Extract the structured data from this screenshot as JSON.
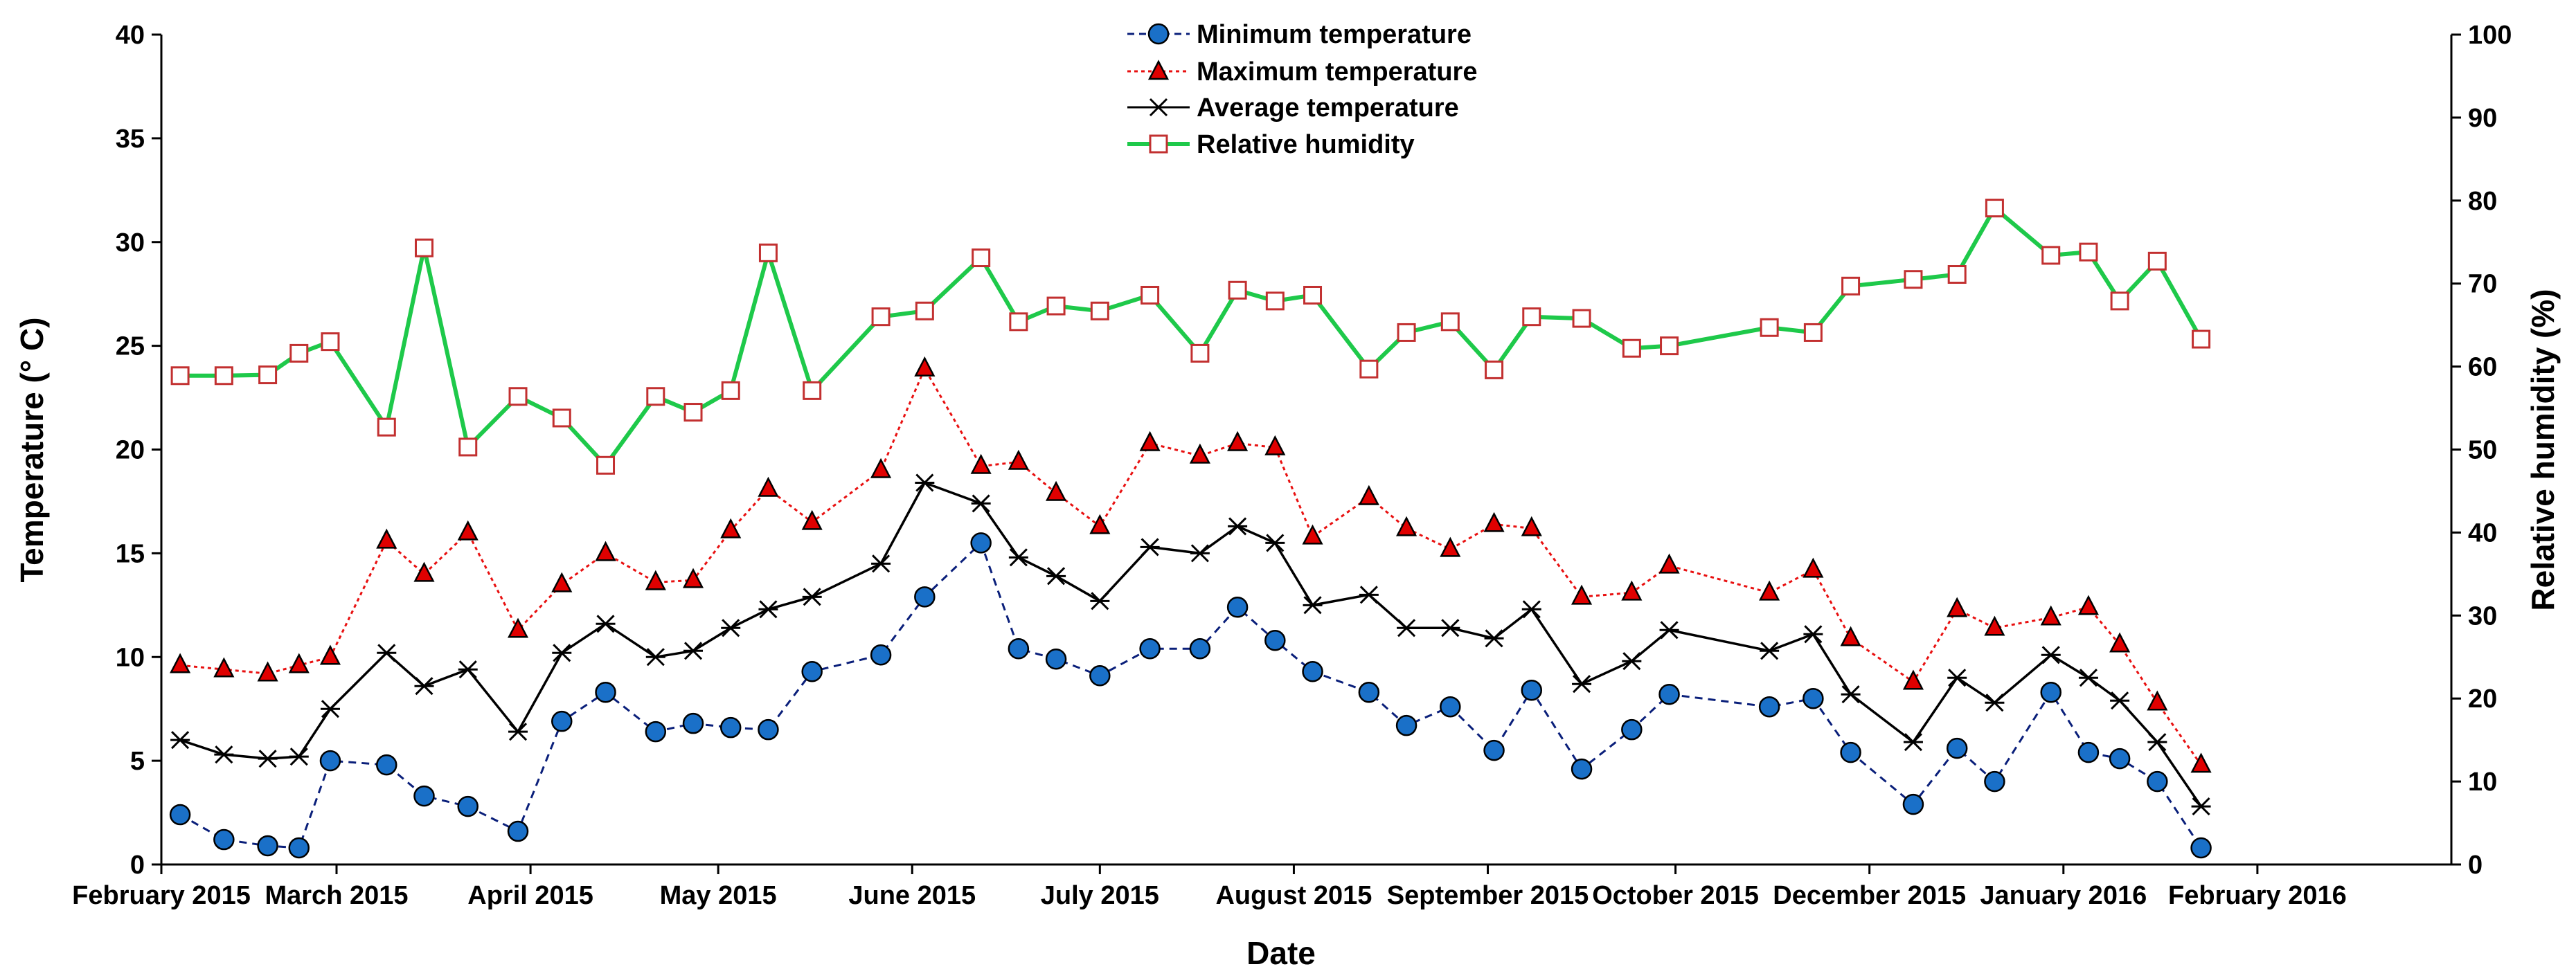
{
  "chart_data": {
    "type": "line",
    "xlabel": "Date",
    "ylabel_left": "Temperature (° C)",
    "ylabel_right": "Relative humidity (%)",
    "ylim_left": [
      0,
      40
    ],
    "yticks_left": [
      "0",
      "5",
      "10",
      "15",
      "20",
      "25",
      "30",
      "35",
      "40"
    ],
    "ylim_right": [
      0,
      100
    ],
    "yticks_right": [
      "0",
      "10",
      "20",
      "30",
      "40",
      "50",
      "60",
      "70",
      "80",
      "90",
      "100"
    ],
    "xlim_days": [
      0,
      366
    ],
    "xticks": [
      {
        "label": "February 2015",
        "day": 0
      },
      {
        "label": "March 2015",
        "day": 28
      },
      {
        "label": "April 2015",
        "day": 59
      },
      {
        "label": "May 2015",
        "day": 89
      },
      {
        "label": "June 2015",
        "day": 120
      },
      {
        "label": "July 2015",
        "day": 150
      },
      {
        "label": "August 2015",
        "day": 181
      },
      {
        "label": "September 2015",
        "day": 212
      },
      {
        "label": "October 2015",
        "day": 242
      },
      {
        "label": "December 2015",
        "day": 273
      },
      {
        "label": "January 2016",
        "day": 304
      },
      {
        "label": "February 2016",
        "day": 335
      }
    ],
    "legend_position": "top-center",
    "grid": false,
    "x": [
      3,
      10,
      17,
      22,
      27,
      36,
      42,
      49,
      57,
      64,
      71,
      79,
      85,
      91,
      97,
      104,
      115,
      122,
      131,
      137,
      143,
      150,
      158,
      166,
      172,
      178,
      184,
      193,
      199,
      206,
      213,
      219,
      227,
      235,
      241,
      257,
      264,
      270,
      280,
      287,
      293,
      302,
      308,
      313,
      319,
      326
    ],
    "series": [
      {
        "name": "Minimum temperature",
        "axis": "left",
        "color": "#0a1f7a",
        "marker_fill": "#1a70c8",
        "values": [
          2.4,
          1.2,
          0.9,
          0.8,
          5.0,
          4.8,
          3.3,
          2.8,
          1.6,
          6.9,
          8.3,
          6.4,
          6.8,
          6.6,
          6.5,
          9.3,
          10.1,
          12.9,
          15.5,
          10.4,
          9.9,
          9.1,
          10.4,
          10.4,
          12.4,
          10.8,
          9.3,
          8.3,
          6.7,
          7.6,
          5.5,
          8.4,
          4.6,
          6.5,
          8.2,
          7.6,
          8.0,
          5.4,
          2.9,
          5.6,
          4.0,
          8.3,
          5.4,
          5.1,
          4.0,
          0.8
        ]
      },
      {
        "name": "Maximum temperature",
        "axis": "left",
        "color": "#e81010",
        "marker_fill": "#e00000",
        "values": [
          9.6,
          9.4,
          9.2,
          9.6,
          10.0,
          15.6,
          14.0,
          16.0,
          11.3,
          13.5,
          15.0,
          13.6,
          13.7,
          16.1,
          18.1,
          16.5,
          19.0,
          23.9,
          19.2,
          19.4,
          17.9,
          16.3,
          20.3,
          19.7,
          20.3,
          20.1,
          15.8,
          17.7,
          16.2,
          15.2,
          16.4,
          16.2,
          12.9,
          13.1,
          14.4,
          13.1,
          14.2,
          10.9,
          8.8,
          12.3,
          11.4,
          11.9,
          12.4,
          10.6,
          7.8,
          4.8
        ]
      },
      {
        "name": "Average temperature",
        "axis": "left",
        "color": "#000000",
        "marker_fill": "none",
        "values": [
          6.0,
          5.3,
          5.1,
          5.2,
          7.5,
          10.2,
          8.6,
          9.4,
          6.4,
          10.2,
          11.6,
          10.0,
          10.3,
          11.4,
          12.3,
          12.9,
          14.5,
          18.4,
          17.4,
          14.8,
          13.9,
          12.7,
          15.3,
          15.0,
          16.3,
          15.5,
          12.5,
          13.0,
          11.4,
          11.4,
          10.9,
          12.3,
          8.7,
          9.8,
          11.3,
          10.3,
          11.1,
          8.2,
          5.9,
          9.0,
          7.8,
          10.1,
          9.0,
          7.9,
          5.9,
          2.8
        ]
      },
      {
        "name": "Relative humidity",
        "axis": "right",
        "color": "#1ec94a",
        "marker_fill": "#ffffff",
        "marker_edge": "#c23030",
        "values": [
          58.9,
          58.9,
          59.0,
          61.6,
          63.0,
          52.7,
          74.3,
          50.3,
          56.4,
          53.8,
          48.1,
          56.4,
          54.5,
          57.1,
          73.7,
          57.1,
          66.0,
          66.7,
          73.1,
          65.4,
          67.3,
          66.7,
          68.6,
          61.6,
          69.2,
          67.9,
          68.6,
          59.7,
          64.1,
          65.4,
          59.6,
          66.0,
          65.8,
          62.2,
          62.5,
          64.7,
          64.1,
          69.7,
          70.5,
          71.1,
          79.1,
          73.4,
          73.8,
          67.9,
          72.7,
          63.3
        ]
      }
    ]
  }
}
